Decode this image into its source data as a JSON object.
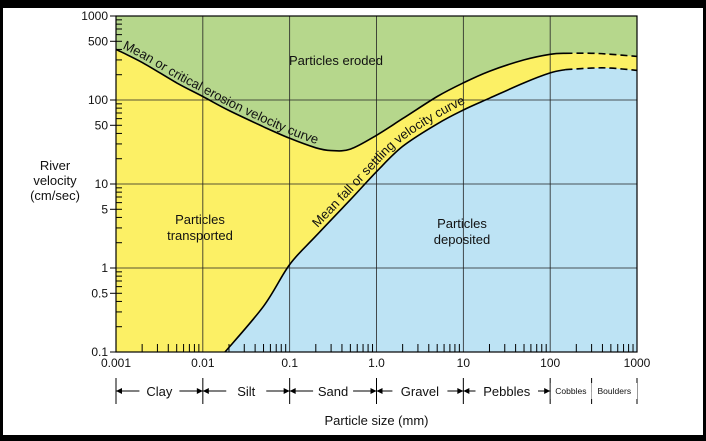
{
  "chart_data": {
    "type": "line",
    "title": "",
    "xlabel": "Particle size (mm)",
    "ylabel_lines": [
      "River",
      "velocity",
      "(cm/sec)"
    ],
    "x_scale": "log",
    "y_scale": "log",
    "xlim": [
      0.001,
      1000
    ],
    "ylim": [
      0.1,
      1000
    ],
    "x_ticks": [
      {
        "value": 0.001,
        "label": "0.001"
      },
      {
        "value": 0.01,
        "label": "0.01"
      },
      {
        "value": 0.1,
        "label": "0.1"
      },
      {
        "value": 1,
        "label": "1.0"
      },
      {
        "value": 10,
        "label": "10"
      },
      {
        "value": 100,
        "label": "100"
      },
      {
        "value": 1000,
        "label": "1000"
      }
    ],
    "y_ticks": [
      {
        "value": 1000,
        "label": "1000"
      },
      {
        "value": 500,
        "label": "500"
      },
      {
        "value": 100,
        "label": "100"
      },
      {
        "value": 50,
        "label": "50"
      },
      {
        "value": 10,
        "label": "10"
      },
      {
        "value": 5,
        "label": "5"
      },
      {
        "value": 1,
        "label": "1"
      },
      {
        "value": 0.5,
        "label": "0.5"
      },
      {
        "value": 0.1,
        "label": "0.1"
      }
    ],
    "grid": true,
    "series": [
      {
        "name": "Mean or critical erosion velocity curve",
        "x": [
          0.001,
          0.002,
          0.005,
          0.01,
          0.02,
          0.05,
          0.1,
          0.2,
          0.3,
          0.5,
          1,
          2,
          5,
          10,
          20,
          50,
          100,
          150,
          300,
          500,
          1000
        ],
        "y": [
          400,
          280,
          160,
          110,
          75,
          48,
          35,
          27,
          25,
          26,
          38,
          60,
          110,
          160,
          220,
          300,
          350,
          360,
          360,
          350,
          330
        ],
        "dashed_from_x": 150
      },
      {
        "name": "Mean fall or settling velocity curve",
        "x": [
          0.018,
          0.05,
          0.1,
          0.2,
          0.5,
          1,
          2,
          5,
          10,
          20,
          50,
          100,
          150,
          300,
          500,
          1000
        ],
        "y": [
          0.1,
          0.35,
          1.1,
          2.4,
          6.5,
          14,
          28,
          52,
          76,
          105,
          160,
          210,
          230,
          240,
          240,
          225
        ],
        "dashed_from_x": 150
      }
    ],
    "regions": [
      {
        "label": "Particles eroded",
        "color": "#b6d78c"
      },
      {
        "label": "Particles transported",
        "color": "#fcf065"
      },
      {
        "label": "Particles deposited",
        "color": "#bde3f4"
      }
    ],
    "region_label_lines": {
      "eroded": [
        "Particles eroded"
      ],
      "transported": [
        "Particles",
        "transported"
      ],
      "deposited": [
        "Particles",
        "deposited"
      ]
    },
    "size_classes": [
      {
        "name": "Clay",
        "from": 0.001,
        "to": 0.01,
        "small": false
      },
      {
        "name": "Silt",
        "from": 0.01,
        "to": 0.1,
        "small": false
      },
      {
        "name": "Sand",
        "from": 0.1,
        "to": 1,
        "small": false
      },
      {
        "name": "Gravel",
        "from": 1,
        "to": 10,
        "small": false
      },
      {
        "name": "Pebbles",
        "from": 10,
        "to": 100,
        "small": false
      },
      {
        "name": "Cobbles",
        "from": 100,
        "to": 300,
        "small": true
      },
      {
        "name": "Boulders",
        "from": 300,
        "to": 1000,
        "small": true
      }
    ]
  }
}
